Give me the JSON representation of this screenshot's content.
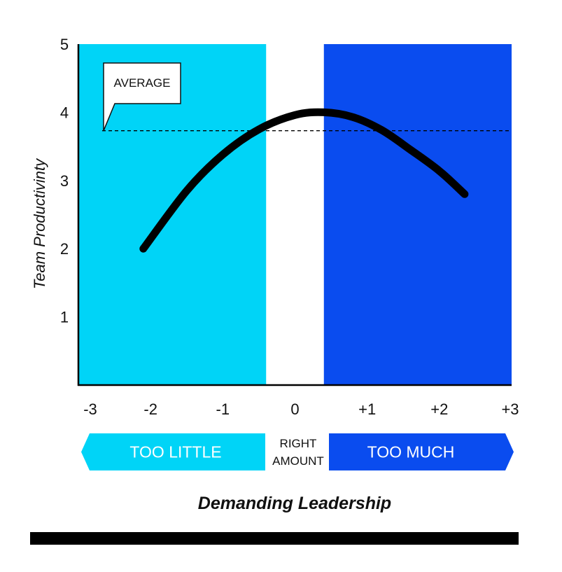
{
  "colors": {
    "too_little": "#00d4f7",
    "too_much": "#0a4cef",
    "curve": "#000000",
    "axis": "#000000",
    "average_line": "#000000"
  },
  "regions": {
    "left_label": "TOO LITTLE",
    "middle_label_line1": "RIGHT",
    "middle_label_line2": "AMOUNT",
    "right_label": "TOO MUCH"
  },
  "callout": {
    "label": "AVERAGE"
  },
  "chart_data": {
    "type": "line",
    "title": "",
    "xlabel": "Demanding Leadership",
    "ylabel": "Team Productivinty",
    "xlim": [
      -3,
      3
    ],
    "ylim": [
      0,
      5
    ],
    "x_ticks": [
      -3,
      -2,
      -1,
      0,
      1,
      2,
      3
    ],
    "x_tick_labels": [
      "-3",
      "-2",
      "-1",
      "0",
      "+1",
      "+2",
      "+3"
    ],
    "y_ticks": [
      1,
      2,
      3,
      4,
      5
    ],
    "y_tick_labels": [
      "1",
      "2",
      "3",
      "4",
      "5"
    ],
    "regions": [
      {
        "label": "TOO LITTLE",
        "x_range": [
          -3,
          -0.4
        ]
      },
      {
        "label": "RIGHT AMOUNT",
        "x_range": [
          -0.4,
          0.4
        ]
      },
      {
        "label": "TOO MUCH",
        "x_range": [
          0.4,
          3
        ]
      }
    ],
    "average": 3.73,
    "series": [
      {
        "x": [
          -2.1,
          -1.5,
          -1.0,
          -0.5,
          0.0,
          0.4,
          0.8,
          1.2,
          1.6,
          2.0,
          2.35
        ],
        "y": [
          2.0,
          2.85,
          3.38,
          3.75,
          3.96,
          4.0,
          3.93,
          3.74,
          3.45,
          3.14,
          2.8
        ]
      }
    ]
  }
}
